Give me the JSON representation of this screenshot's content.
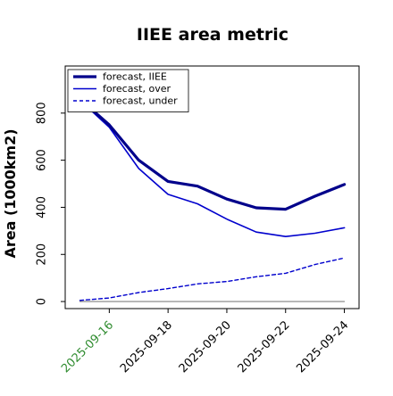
{
  "chart_data": {
    "type": "line",
    "title": "IIEE area metric",
    "xlabel": "",
    "ylabel": "Area (1000km2)",
    "x": [
      "2025-09-15",
      "2025-09-16",
      "2025-09-17",
      "2025-09-18",
      "2025-09-19",
      "2025-09-20",
      "2025-09-21",
      "2025-09-22",
      "2025-09-23",
      "2025-09-24"
    ],
    "xlim": [
      "2025-09-14T12:00",
      "2025-09-24T12:00"
    ],
    "ylim": [
      -30,
      1000
    ],
    "xticks": [
      {
        "label": "2025-09-16",
        "color": "#2e8b2e"
      },
      {
        "label": "2025-09-18",
        "color": "#000000"
      },
      {
        "label": "2025-09-20",
        "color": "#000000"
      },
      {
        "label": "2025-09-22",
        "color": "#000000"
      },
      {
        "label": "2025-09-24",
        "color": "#000000"
      }
    ],
    "yticks": [
      "0",
      "200",
      "400",
      "600",
      "800"
    ],
    "ytick_values": [
      0,
      200,
      400,
      600,
      800
    ],
    "grid": false,
    "legend_position": "top-left",
    "series": [
      {
        "name": "forecast, IIEE",
        "color": "#00008b",
        "style": "solid-thick",
        "values": [
          860,
          750,
          600,
          510,
          490,
          435,
          398,
          392,
          447,
          497
        ]
      },
      {
        "name": "forecast, over",
        "color": "#0000cd",
        "style": "solid",
        "values": [
          855,
          740,
          565,
          455,
          415,
          350,
          295,
          276,
          290,
          313
        ]
      },
      {
        "name": "forecast, under",
        "color": "#0000cd",
        "style": "dashed",
        "values": [
          5,
          15,
          38,
          55,
          75,
          85,
          105,
          120,
          157,
          185
        ]
      },
      {
        "name": "",
        "color": "#808080",
        "style": "solid-thin",
        "values": [
          0,
          0,
          0,
          0,
          0,
          0,
          0,
          0,
          0,
          0
        ]
      }
    ]
  }
}
